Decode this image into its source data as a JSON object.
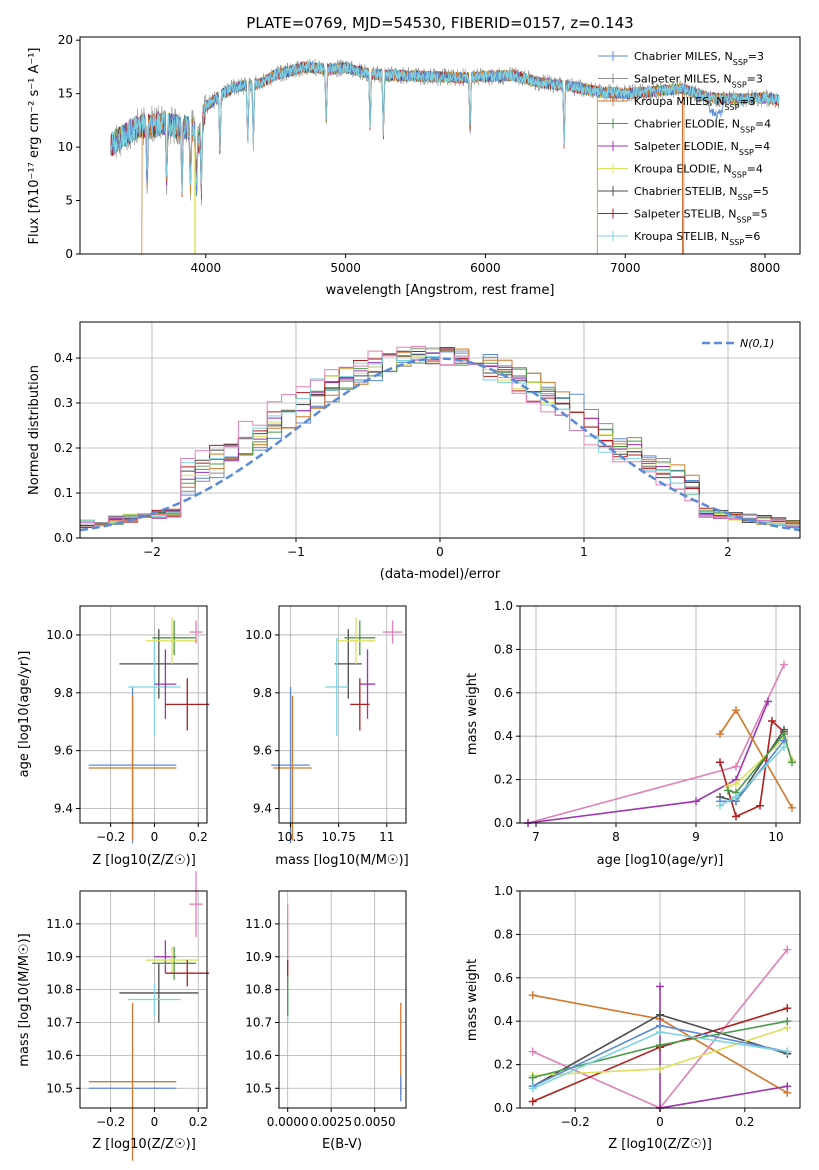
{
  "colors": {
    "chabrier_miles": "#5b8bd6",
    "salpeter_miles": "#8e8e8e",
    "kroupa_miles": "#d2772b",
    "chabrier_elodie": "#4a9a4a",
    "salpeter_elodie": "#9c35b0",
    "kroupa_elodie": "#dde05a",
    "chabrier_stelib": "#4d4d4d",
    "salpeter_stelib": "#b01e1e",
    "kroupa_stelib": "#7dd3e0",
    "pink": "#e080b8",
    "normal_curve": "#5b8bd6",
    "grid": "#b0b0b0"
  },
  "chart_data": [
    {
      "id": "spectrum",
      "type": "line",
      "title": "PLATE=0769, MJD=54530, FIBERID=0157, z=0.143",
      "xlabel": "wavelength [Angstrom, rest frame]",
      "ylabel": "Flux [fλ10⁻¹⁷ erg cm⁻² s⁻¹ A⁻¹]",
      "xlim": [
        3100,
        8250
      ],
      "ylim": [
        0,
        20.3
      ],
      "xticks": [
        4000,
        5000,
        6000,
        7000,
        8000
      ],
      "yticks": [
        0,
        5,
        10,
        15,
        20
      ],
      "grid": false,
      "legend_position": "top-right",
      "spectrum_continuum": {
        "x": [
          3320,
          3400,
          3500,
          3600,
          3700,
          3800,
          3900,
          3950,
          4000,
          4100,
          4200,
          4300,
          4400,
          4500,
          4600,
          4700,
          4800,
          4900,
          5000,
          5200,
          5400,
          5600,
          5800,
          6000,
          6200,
          6400,
          6600,
          6800,
          7000,
          7200,
          7400,
          7600,
          7800,
          8000,
          8100
        ],
        "y": [
          10.2,
          11.0,
          11.8,
          12.0,
          12.3,
          11.9,
          11.8,
          10.5,
          13.8,
          14.8,
          15.6,
          15.8,
          16.0,
          16.8,
          17.1,
          17.5,
          17.4,
          17.3,
          17.4,
          16.8,
          16.7,
          16.6,
          16.5,
          16.6,
          16.7,
          16.0,
          15.7,
          15.2,
          15.0,
          15.2,
          15.5,
          14.6,
          14.5,
          14.6,
          14.4
        ]
      },
      "absorption_lines": [
        3580,
        3720,
        3830,
        3890,
        3933,
        3968,
        4101,
        4300,
        4340,
        4861,
        5175,
        5270,
        5890,
        6563
      ],
      "drop_edges": [
        {
          "series": "Kroupa MILES",
          "x_start": 3540,
          "x_end": 6800,
          "note": "falls to zero"
        },
        {
          "series": "Kroupa ELODIE",
          "x_start": 3920,
          "x_end": 6800,
          "note": "falls to zero"
        }
      ],
      "series": [
        {
          "name": "Chabrier MILES, N_SSP=3",
          "color_key": "chabrier_miles"
        },
        {
          "name": "Salpeter MILES, N_SSP=3",
          "color_key": "salpeter_miles"
        },
        {
          "name": "Kroupa MILES, N_SSP=3",
          "color_key": "kroupa_miles"
        },
        {
          "name": "Chabrier ELODIE, N_SSP=4",
          "color_key": "chabrier_elodie"
        },
        {
          "name": "Salpeter ELODIE, N_SSP=4",
          "color_key": "salpeter_elodie"
        },
        {
          "name": "Kroupa ELODIE, N_SSP=4",
          "color_key": "kroupa_elodie"
        },
        {
          "name": "Chabrier STELIB, N_SSP=5",
          "color_key": "chabrier_stelib"
        },
        {
          "name": "Salpeter STELIB, N_SSP=5",
          "color_key": "salpeter_stelib"
        },
        {
          "name": "Kroupa STELIB, N_SSP=6",
          "color_key": "kroupa_stelib"
        }
      ],
      "legend_labels": [
        {
          "prefix": "Chabrier MILES, N",
          "sub": "SSP",
          "suffix": "=3"
        },
        {
          "prefix": "Salpeter MILES, N",
          "sub": "SSP",
          "suffix": "=3"
        },
        {
          "prefix": "Kroupa MILES, N",
          "sub": "SSP",
          "suffix": "=3"
        },
        {
          "prefix": "Chabrier ELODIE, N",
          "sub": "SSP",
          "suffix": "=4"
        },
        {
          "prefix": "Salpeter ELODIE, N",
          "sub": "SSP",
          "suffix": "=4"
        },
        {
          "prefix": "Kroupa ELODIE, N",
          "sub": "SSP",
          "suffix": "=4"
        },
        {
          "prefix": "Chabrier STELIB, N",
          "sub": "SSP",
          "suffix": "=5"
        },
        {
          "prefix": "Salpeter STELIB, N",
          "sub": "SSP",
          "suffix": "=5"
        },
        {
          "prefix": "Kroupa STELIB, N",
          "sub": "SSP",
          "suffix": "=6"
        }
      ]
    },
    {
      "id": "residuals",
      "type": "histogram",
      "xlabel": "(data-model)/error",
      "ylabel": "Normed distribution",
      "xlim": [
        -2.5,
        2.5
      ],
      "ylim": [
        0,
        0.48
      ],
      "xticks": [
        -2,
        -1,
        0,
        1,
        2
      ],
      "yticks": [
        0.0,
        0.1,
        0.2,
        0.3,
        0.4
      ],
      "grid": true,
      "bin_width": 0.1,
      "legend_position": "top-right",
      "legend": [
        "N(0,1)"
      ],
      "reference_curve": "standard normal N(0,1)"
    },
    {
      "id": "age_vs_Z",
      "type": "scatter",
      "xlabel": "Z [log10(Z/Z☉)]",
      "ylabel": "age  [log10(age/yr)]",
      "xlim": [
        -0.34,
        0.24
      ],
      "ylim": [
        9.35,
        10.1
      ],
      "xticks": [
        -0.2,
        0.0,
        0.2
      ],
      "yticks": [
        9.4,
        9.6,
        9.8,
        10.0
      ],
      "grid": true,
      "points": [
        {
          "color_key": "chabrier_miles",
          "x": -0.1,
          "y": 9.55,
          "xerr": 0.2,
          "yerr": 0.27
        },
        {
          "color_key": "kroupa_miles",
          "x": -0.1,
          "y": 9.54,
          "xerr": 0.2,
          "yerr": 0.25
        },
        {
          "color_key": "chabrier_stelib",
          "x": 0.02,
          "y": 9.9,
          "xerr": 0.18,
          "yerr": 0.12
        },
        {
          "color_key": "kroupa_stelib",
          "x": 0.0,
          "y": 9.82,
          "xerr": 0.12,
          "yerr": 0.17
        },
        {
          "color_key": "salpeter_elodie",
          "x": 0.05,
          "y": 9.83,
          "xerr": 0.05,
          "yerr": 0.12
        },
        {
          "color_key": "chabrier_elodie",
          "x": 0.09,
          "y": 9.99,
          "xerr": 0.1,
          "yerr": 0.06
        },
        {
          "color_key": "kroupa_elodie",
          "x": 0.08,
          "y": 9.98,
          "xerr": 0.12,
          "yerr": 0.08
        },
        {
          "color_key": "salpeter_stelib",
          "x": 0.15,
          "y": 9.76,
          "xerr": 0.1,
          "yerr": 0.09
        },
        {
          "color_key": "pink",
          "x": 0.19,
          "y": 10.01,
          "xerr": 0.03,
          "yerr": 0.04
        }
      ]
    },
    {
      "id": "age_vs_mass",
      "type": "scatter",
      "xlabel": "mass [log10(M/M☉)]",
      "ylabel": "",
      "xlim": [
        10.44,
        11.1
      ],
      "ylim": [
        9.35,
        10.1
      ],
      "xticks": [
        10.5,
        10.75,
        11.0
      ],
      "yticks": [
        9.4,
        9.6,
        9.8,
        10.0
      ],
      "grid": true
    },
    {
      "id": "massweight_vs_age",
      "type": "line",
      "xlabel": "age  [log10(age/yr)]",
      "ylabel": "mass weight",
      "xlim": [
        6.8,
        10.3
      ],
      "ylim": [
        0,
        1.0
      ],
      "xticks": [
        7,
        8,
        9,
        10
      ],
      "yticks": [
        0.0,
        0.2,
        0.4,
        0.6,
        0.8,
        1.0
      ],
      "grid": true,
      "series": [
        {
          "color_key": "pink",
          "x": [
            6.9,
            9.5,
            10.1
          ],
          "y": [
            0.0,
            0.26,
            0.73
          ]
        },
        {
          "color_key": "salpeter_elodie",
          "x": [
            6.9,
            9.0,
            9.5,
            9.9
          ],
          "y": [
            0.0,
            0.1,
            0.2,
            0.56
          ]
        },
        {
          "color_key": "kroupa_miles",
          "x": [
            9.3,
            9.5,
            10.2
          ],
          "y": [
            0.41,
            0.52,
            0.07
          ]
        },
        {
          "color_key": "salpeter_stelib",
          "x": [
            9.3,
            9.5,
            9.8,
            9.95,
            10.1
          ],
          "y": [
            0.28,
            0.03,
            0.08,
            0.47,
            0.42
          ]
        },
        {
          "color_key": "chabrier_stelib",
          "x": [
            9.3,
            9.5,
            10.1
          ],
          "y": [
            0.12,
            0.1,
            0.43
          ]
        },
        {
          "color_key": "kroupa_elodie",
          "x": [
            9.4,
            9.5,
            10.1,
            10.2
          ],
          "y": [
            0.17,
            0.18,
            0.39,
            0.29
          ]
        },
        {
          "color_key": "chabrier_elodie",
          "x": [
            9.4,
            9.5,
            10.1,
            10.2
          ],
          "y": [
            0.15,
            0.14,
            0.41,
            0.28
          ]
        },
        {
          "color_key": "chabrier_miles",
          "x": [
            9.3,
            9.5,
            10.1
          ],
          "y": [
            0.1,
            0.1,
            0.38
          ]
        },
        {
          "color_key": "kroupa_stelib",
          "x": [
            9.3,
            9.5,
            10.1
          ],
          "y": [
            0.08,
            0.12,
            0.35
          ]
        }
      ]
    },
    {
      "id": "mass_vs_Z",
      "type": "scatter",
      "xlabel": "Z [log10(Z/Z☉)]",
      "ylabel": "mass [log10(M/M☉)]",
      "xlim": [
        -0.34,
        0.24
      ],
      "ylim": [
        10.44,
        11.1
      ],
      "xticks": [
        -0.2,
        0.0,
        0.2
      ],
      "yticks": [
        10.5,
        10.6,
        10.7,
        10.8,
        10.9,
        11.0
      ],
      "grid": true
    },
    {
      "id": "mass_vs_ebv",
      "type": "scatter",
      "xlabel": "E(B-V)",
      "ylabel": "",
      "xlim": [
        -0.0005,
        0.0068
      ],
      "ylim": [
        10.44,
        11.1
      ],
      "xticks": [
        0.0,
        0.0025,
        0.005
      ],
      "xtick_labels": [
        "0.0000",
        "0.0025",
        "0.0050"
      ],
      "yticks": [
        10.5,
        10.6,
        10.7,
        10.8,
        10.9,
        11.0
      ],
      "grid": true
    },
    {
      "id": "massweight_vs_Z",
      "type": "line",
      "xlabel": "Z [log10(Z/Z☉)]",
      "ylabel": "mass weight",
      "xlim": [
        -0.33,
        0.33
      ],
      "ylim": [
        0,
        1.0
      ],
      "xticks": [
        -0.2,
        0.0,
        0.2
      ],
      "yticks": [
        0.0,
        0.2,
        0.4,
        0.6,
        0.8,
        1.0
      ],
      "grid": true,
      "series": [
        {
          "color_key": "kroupa_miles",
          "x": [
            -0.3,
            0.0,
            0.3
          ],
          "y": [
            0.52,
            0.41,
            0.07
          ]
        },
        {
          "color_key": "pink",
          "x": [
            -0.3,
            0.0,
            0.3
          ],
          "y": [
            0.26,
            0.0,
            0.73
          ]
        },
        {
          "color_key": "salpeter_elodie",
          "x": [
            0.0,
            0.0,
            0.3
          ],
          "y": [
            0.56,
            0.0,
            0.1
          ]
        },
        {
          "color_key": "salpeter_stelib",
          "x": [
            -0.3,
            0.0,
            0.3
          ],
          "y": [
            0.03,
            0.28,
            0.46
          ]
        },
        {
          "color_key": "chabrier_stelib",
          "x": [
            -0.3,
            0.0,
            0.3
          ],
          "y": [
            0.1,
            0.43,
            0.25
          ]
        },
        {
          "color_key": "kroupa_elodie",
          "x": [
            -0.3,
            0.0,
            0.3
          ],
          "y": [
            0.15,
            0.18,
            0.37
          ]
        },
        {
          "color_key": "chabrier_elodie",
          "x": [
            -0.3,
            0.0,
            0.3
          ],
          "y": [
            0.14,
            0.29,
            0.4
          ]
        },
        {
          "color_key": "chabrier_miles",
          "x": [
            -0.3,
            0.0,
            0.3
          ],
          "y": [
            0.1,
            0.38,
            0.26
          ]
        },
        {
          "color_key": "kroupa_stelib",
          "x": [
            -0.3,
            0.0,
            0.3
          ],
          "y": [
            0.09,
            0.35,
            0.26
          ]
        }
      ]
    }
  ]
}
